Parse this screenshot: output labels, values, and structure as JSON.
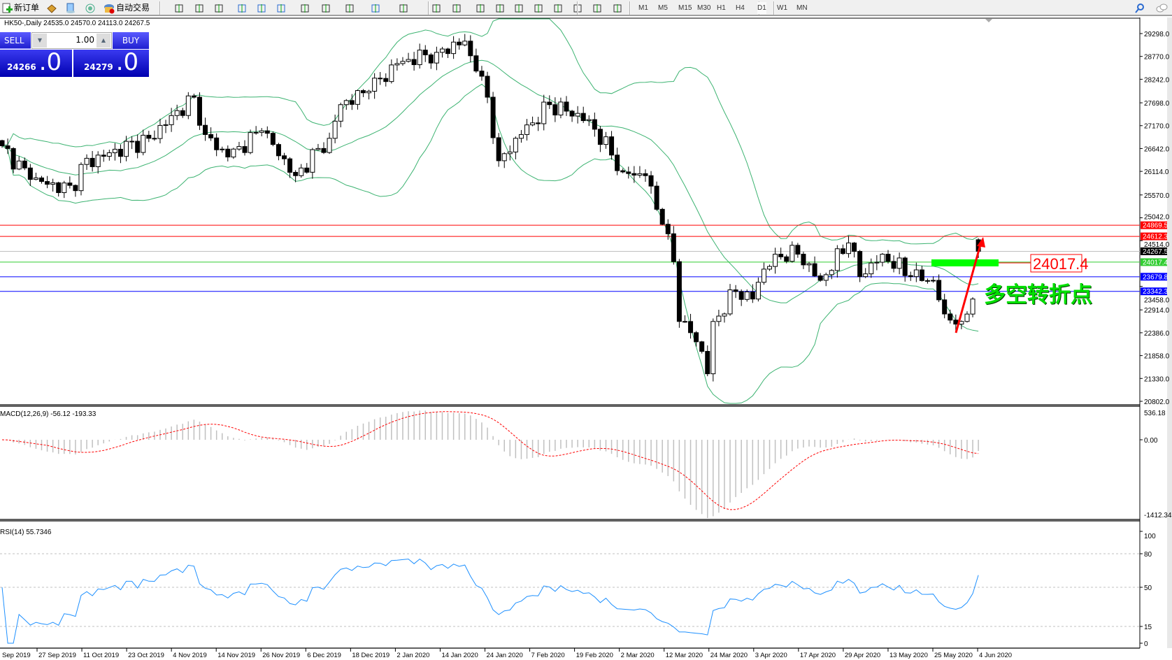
{
  "toolbar": {
    "new_order": "新订单",
    "auto_trading": "自动交易",
    "timeframes": [
      "M1",
      "M5",
      "M15",
      "M30",
      "H1",
      "H4",
      "D1",
      "W1",
      "MN"
    ],
    "active_timeframe": "D1",
    "icons": [
      "new-order-icon",
      "experts-icon",
      "history-center-icon",
      "signals-icon",
      "auto-trading-icon",
      "bar-chart-icon",
      "candlestick-icon",
      "line-chart-icon",
      "zoom-in-icon",
      "zoom-out-icon",
      "tile-windows-icon",
      "autoscroll-icon",
      "chart-shift-icon",
      "indicators-icon",
      "periods-icon",
      "templates-icon",
      "cursor-icon",
      "crosshair-icon",
      "vertical-line-icon",
      "horizontal-line-icon",
      "trendline-icon",
      "equidistant-channel-icon",
      "fibonacci-icon",
      "text-icon",
      "text-label-icon",
      "arrows-icon",
      "search-icon",
      "chat-icon"
    ]
  },
  "chart": {
    "header": "HK50-,Daily  24535.0 24570.0 24113.0 24267.5",
    "trade_panel": {
      "sell_label": "SELL",
      "buy_label": "BUY",
      "lot": "1.00",
      "sell_price_main": "24266",
      "sell_price_big": ".0",
      "buy_price_main": "24279",
      "buy_price_big": ".0"
    },
    "price_ticks": [
      "29298.0",
      "28770.0",
      "28242.0",
      "27698.0",
      "27170.0",
      "26642.0",
      "26114.0",
      "25570.0",
      "25042.0",
      "24514.0",
      "23458.0",
      "22914.0",
      "22386.0",
      "21858.0",
      "21330.0",
      "20802.0"
    ],
    "hlines": [
      {
        "price": "24869.5",
        "color": "#ff0000",
        "label_bg": "#ff0000"
      },
      {
        "price": "24612.3",
        "color": "#ff0000",
        "label_bg": "#ff0000"
      },
      {
        "price": "24267.5",
        "color": "#c0c0c0",
        "label_bg": "#000000"
      },
      {
        "price": "24017.4",
        "color": "#32cd32",
        "label_bg": "#32cd32"
      },
      {
        "price": "23679.8",
        "color": "#0000ff",
        "label_bg": "#0000ff"
      },
      {
        "price": "23342.3",
        "color": "#0000ff",
        "label_bg": "#0000ff"
      }
    ],
    "annotation": {
      "price_label": "24017.4",
      "text": "多空转折点",
      "text_color": "#00e000",
      "arrow_color": "#ff0000",
      "zone_color": "#00ff00"
    },
    "macd": {
      "label": "MACD(12,26,9) -56.12 -193.33",
      "ticks": [
        "536.18",
        "0.00",
        "-1412.34"
      ]
    },
    "rsi": {
      "label": "RSI(14) 55.7346",
      "ticks": [
        "100",
        "80",
        "50",
        "15",
        "0"
      ]
    },
    "dates": [
      "Sep 2019",
      "27 Sep 2019",
      "11 Oct 2019",
      "23 Oct 2019",
      "4 Nov 2019",
      "14 Nov 2019",
      "26 Nov 2019",
      "6 Dec 2019",
      "18 Dec 2019",
      "2 Jan 2020",
      "14 Jan 2020",
      "24 Jan 2020",
      "7 Feb 2020",
      "19 Feb 2020",
      "2 Mar 2020",
      "12 Mar 2020",
      "24 Mar 2020",
      "3 Apr 2020",
      "17 Apr 2020",
      "29 Apr 2020",
      "13 May 2020",
      "25 May 2020",
      "4 Jun 2020"
    ]
  },
  "chart_data": {
    "type": "candlestick",
    "symbol": "HK50-",
    "timeframe": "Daily",
    "last_bar": {
      "open": 24535.0,
      "high": 24570.0,
      "low": 24113.0,
      "close": 24267.5
    },
    "approx_close_waypoints": [
      [
        0,
        26705
      ],
      [
        5,
        25928
      ],
      [
        13,
        25669
      ],
      [
        14,
        26274
      ],
      [
        26,
        26878
      ],
      [
        34,
        27828
      ],
      [
        36,
        26965
      ],
      [
        40,
        26446
      ],
      [
        46,
        27051
      ],
      [
        52,
        26015
      ],
      [
        58,
        26878
      ],
      [
        60,
        27655
      ],
      [
        65,
        27966
      ],
      [
        70,
        28605
      ],
      [
        77,
        28864
      ],
      [
        82,
        29123
      ],
      [
        84,
        28432
      ],
      [
        86,
        27828
      ],
      [
        88,
        26360
      ],
      [
        92,
        26965
      ],
      [
        97,
        27655
      ],
      [
        104,
        27310
      ],
      [
        110,
        26101
      ],
      [
        114,
        26015
      ],
      [
        116,
        25238
      ],
      [
        117,
        24892
      ],
      [
        119,
        24029
      ],
      [
        120,
        22647
      ],
      [
        122,
        22388
      ],
      [
        124,
        21956
      ],
      [
        125,
        21438
      ],
      [
        126,
        22647
      ],
      [
        130,
        23338
      ],
      [
        133,
        23165
      ],
      [
        135,
        23856
      ],
      [
        137,
        24201
      ],
      [
        141,
        24201
      ],
      [
        145,
        23597
      ],
      [
        150,
        24460
      ],
      [
        152,
        23683
      ],
      [
        156,
        24201
      ],
      [
        161,
        23683
      ],
      [
        165,
        23597
      ],
      [
        167,
        22820
      ],
      [
        170,
        22647
      ],
      [
        172,
        23165
      ],
      [
        173,
        24267.5
      ]
    ],
    "indicators": [
      "Bollinger Bands(20,2)",
      "MACD(12,26,9)",
      "RSI(14)"
    ],
    "price_range": [
      20802,
      29298
    ],
    "macd_range": [
      -1412.34,
      536.18
    ],
    "rsi_range": [
      0,
      100
    ]
  }
}
